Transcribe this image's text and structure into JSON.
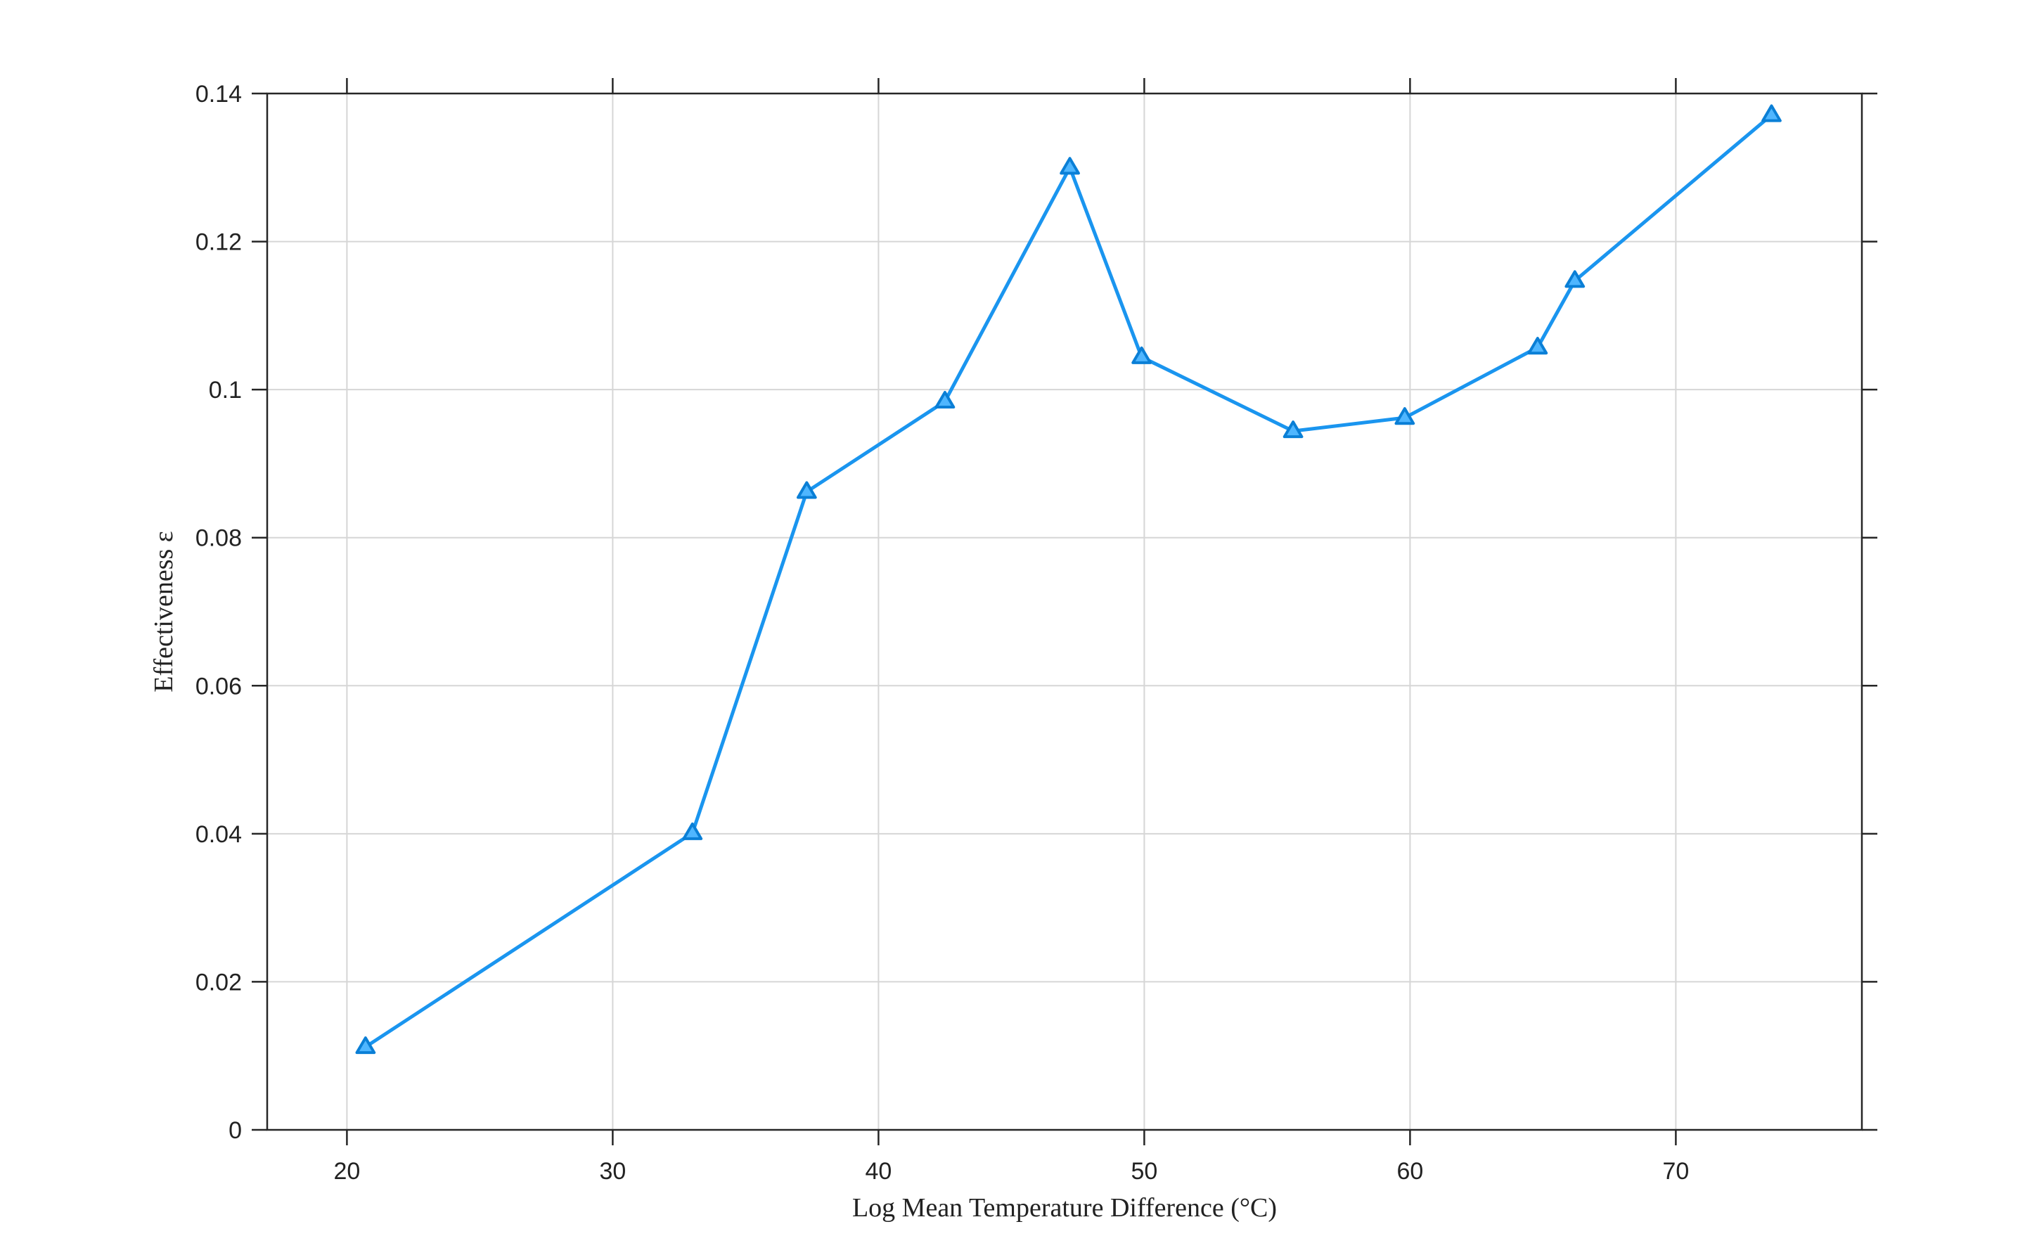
{
  "chart_data": {
    "type": "line",
    "title": "",
    "xlabel": "Log Mean Temperature Difference (°C)",
    "ylabel": "Effectiveness ε",
    "xlim": [
      17,
      77
    ],
    "ylim": [
      0,
      0.14
    ],
    "xticks": [
      20,
      30,
      40,
      50,
      60,
      70
    ],
    "xtick_labels": [
      "20",
      "30",
      "40",
      "50",
      "60",
      "70"
    ],
    "yticks": [
      0,
      0.02,
      0.04,
      0.06,
      0.08,
      0.1,
      0.12,
      0.14
    ],
    "ytick_labels": [
      "0",
      "0.02",
      "0.04",
      "0.06",
      "0.08",
      "0.1",
      "0.12",
      "0.14"
    ],
    "grid": true,
    "legend": "none",
    "series": [
      {
        "color": "#1a95ef",
        "marker": "triangle",
        "x": [
          20.7,
          33.0,
          37.3,
          42.5,
          47.2,
          49.9,
          55.6,
          59.8,
          64.8,
          66.2,
          73.6
        ],
        "y": [
          0.0112,
          0.0401,
          0.0862,
          0.0984,
          0.13,
          0.1044,
          0.0944,
          0.0962,
          0.1057,
          0.1147,
          0.1371
        ]
      }
    ]
  }
}
